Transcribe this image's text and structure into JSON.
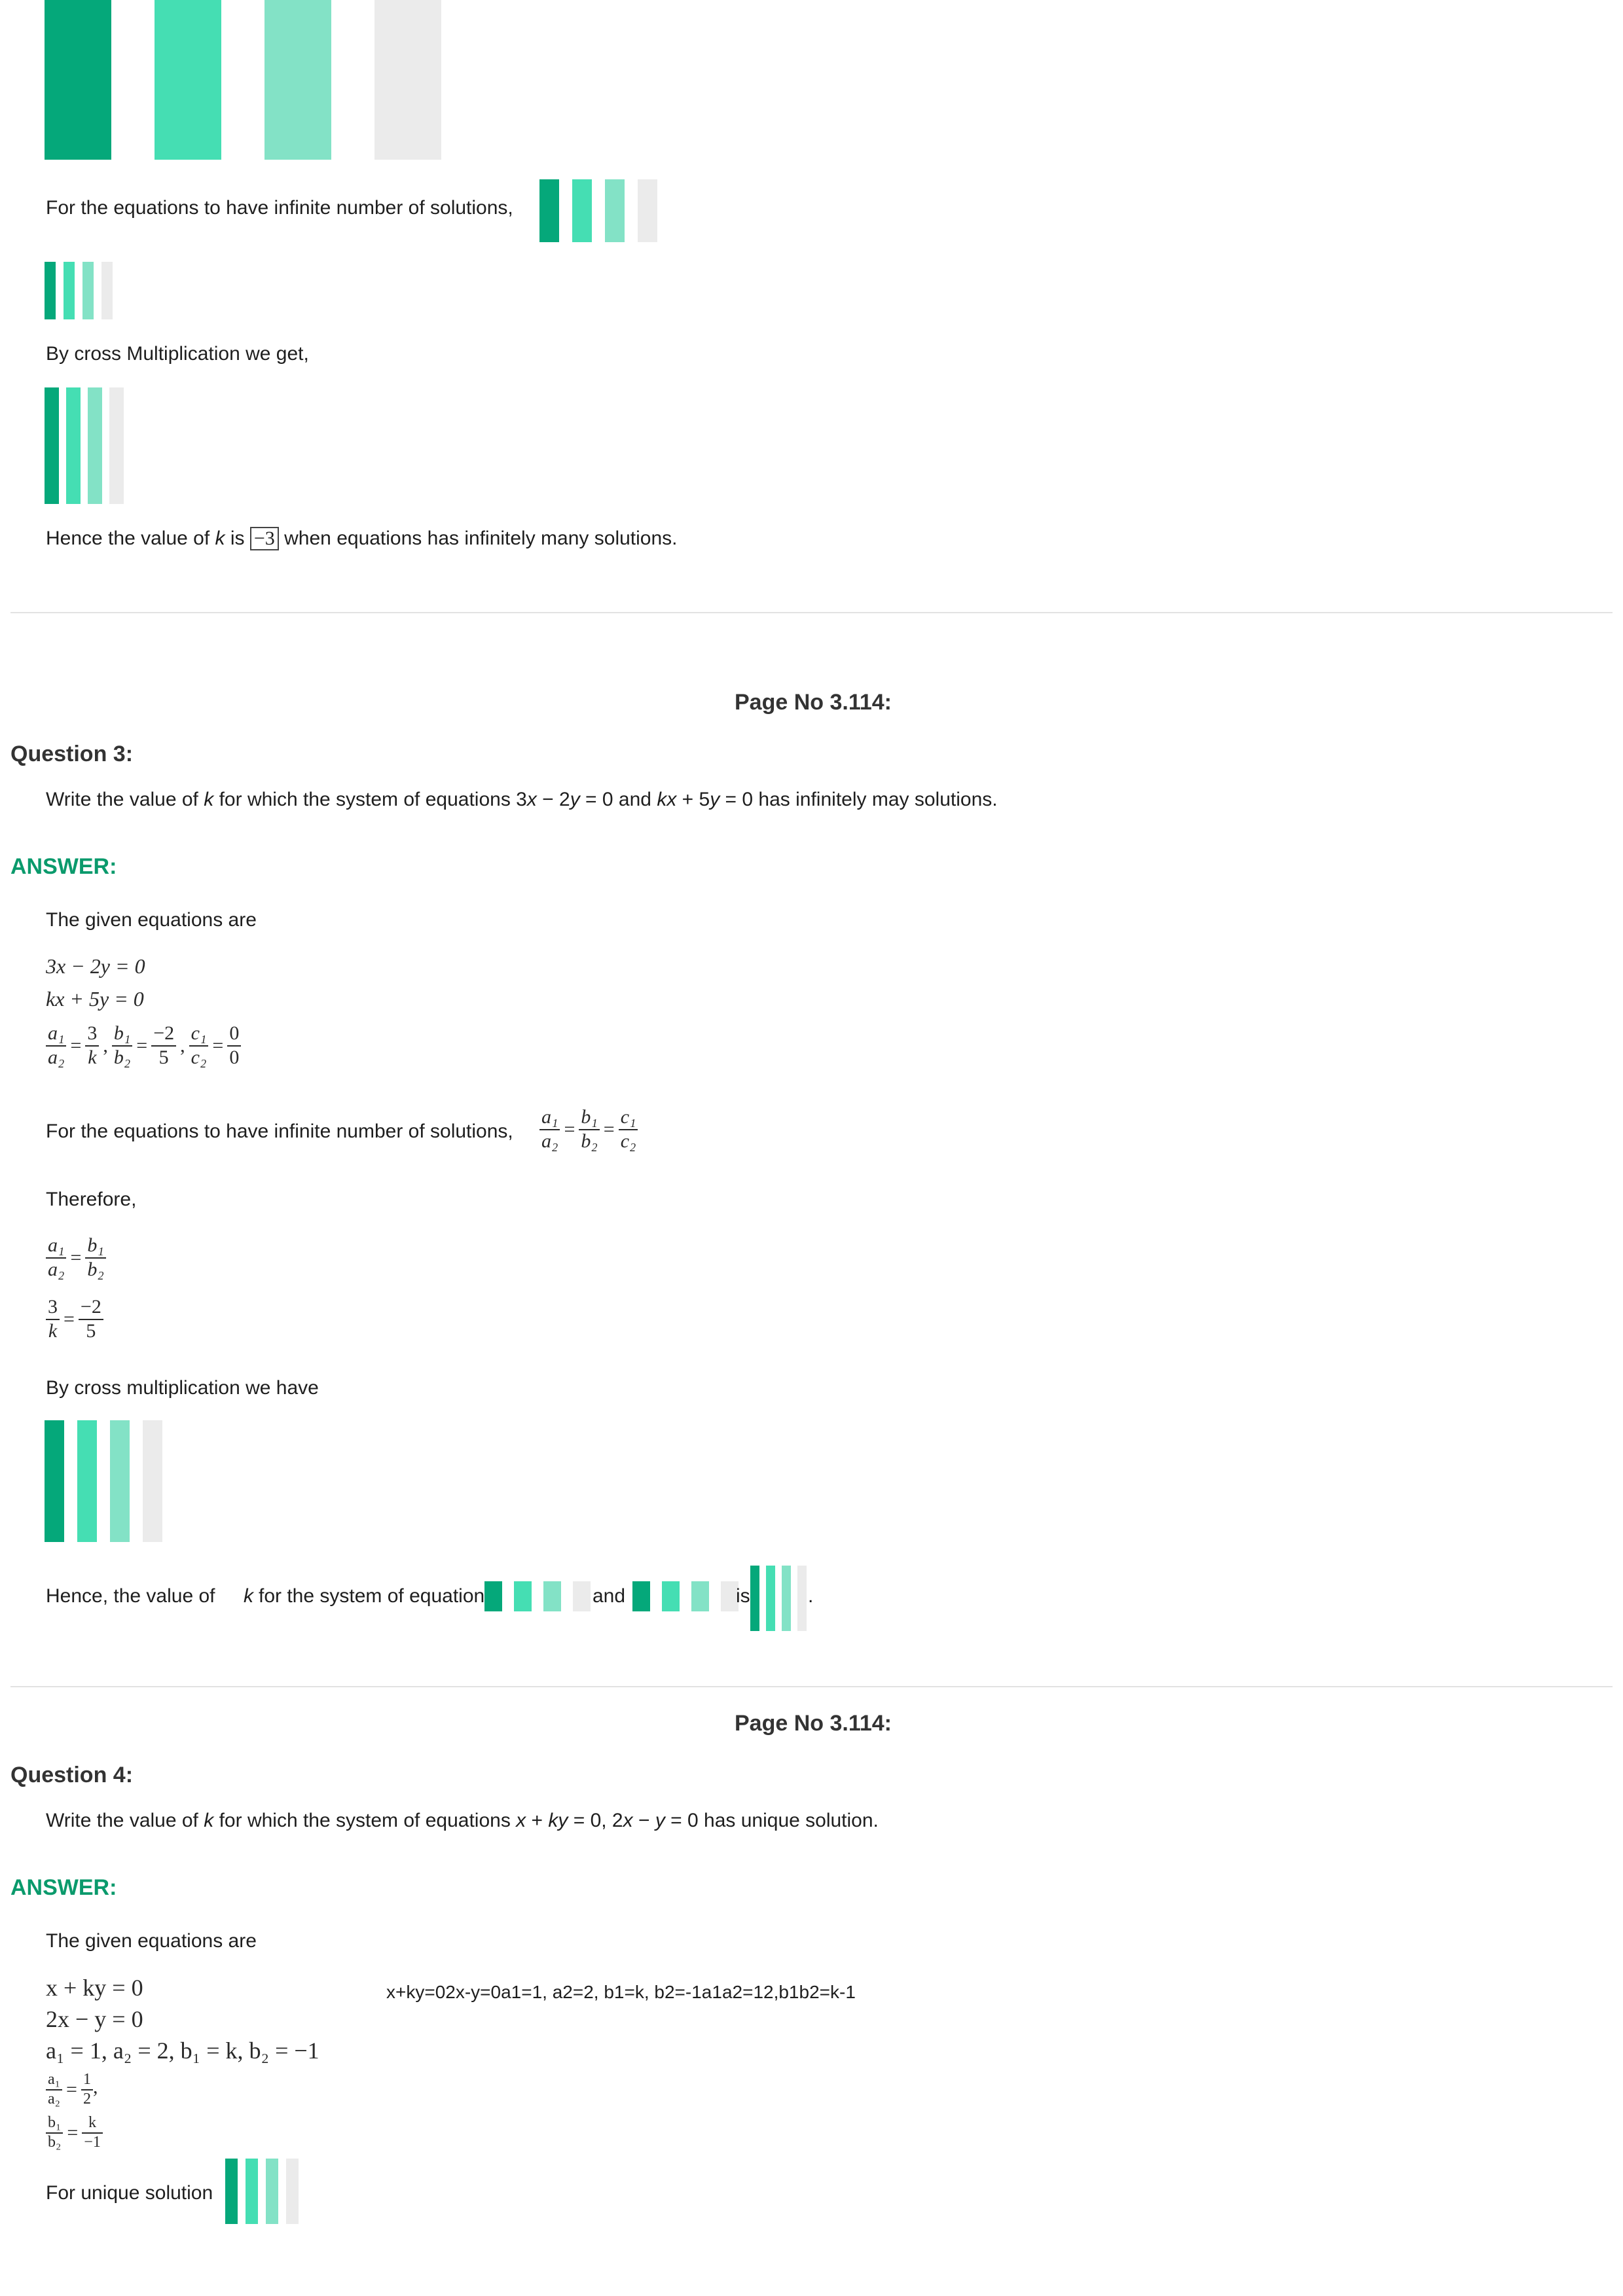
{
  "block1": {
    "infinite_text": "For the equations to have infinite number of solutions,",
    "cross_text": "By cross Multiplication we get,",
    "hence_prefix": "Hence the value of",
    "hence_var": "k",
    "hence_is": "is",
    "hence_value": "−3",
    "hence_suffix": "when equations has infinitely many solutions."
  },
  "page_label_1": "Page No 3.114:",
  "q3": {
    "title": "Question 3:",
    "q_prefix": "Write the value of",
    "q_var": "k",
    "q_mid": "for which the system of equations 3",
    "q_x": "x",
    "q_minus": " − 2",
    "q_y": "y",
    "q_and": " = 0 and",
    "q_kx": "kx",
    "q_plus": " + 5",
    "q_y2": "y",
    "q_end": " = 0 has infinitely may solutions.",
    "answer_label": "ANSWER:",
    "given": "The given equations are",
    "eq1": "3x − 2y = 0",
    "eq2": "kx + 5y = 0",
    "ratio": {
      "a1": "a₁",
      "a2": "a₂",
      "b1": "b₁",
      "b2": "b₂",
      "c1": "c₁",
      "c2": "c₂",
      "n3": "3",
      "dk": "k",
      "nm2": "−2",
      "d5": "5",
      "n0": "0",
      "d0": "0"
    },
    "infinite_text": "For the equations to have infinite number of solutions,",
    "therefore": "Therefore,",
    "cross_text": "By cross multiplication we have",
    "hence_prefix": "Hence, the value of",
    "hence_var": "k",
    "hence_mid": "for the system of equation",
    "hence_and": "and",
    "hence_is": "is",
    "hence_end": "."
  },
  "page_label_2": "Page No 3.114:",
  "q4": {
    "title": "Question 4:",
    "q_prefix": "Write the value of",
    "q_var": "k",
    "q_mid": "for which the system of equations",
    "q_x": "x",
    "q_plus": " + ",
    "q_ky": "ky",
    "q_eq": " = 0, 2",
    "q_x2": "x",
    "q_minus": " − ",
    "q_y": "y",
    "q_end": " = 0 has unique solution.",
    "answer_label": "ANSWER:",
    "given": "The given equations are",
    "eq1": "x + ky = 0",
    "eq2": "2x − y = 0",
    "eq3": "a₁ = 1,  a₂ = 2,  b₁ = k,  b₂ = −1",
    "f1": {
      "a1": "a₁",
      "a2": "a₂",
      "n1": "1",
      "d2": "2"
    },
    "f2": {
      "b1": "b₁",
      "b2": "b₂",
      "nk": "k",
      "dm1": "−1"
    },
    "alt_text": "x+ky=02x-y=0a1=1, a2=2, b1=k, b2=-1a1a2=12,b1b2=k-1",
    "unique_text": "For unique solution"
  }
}
